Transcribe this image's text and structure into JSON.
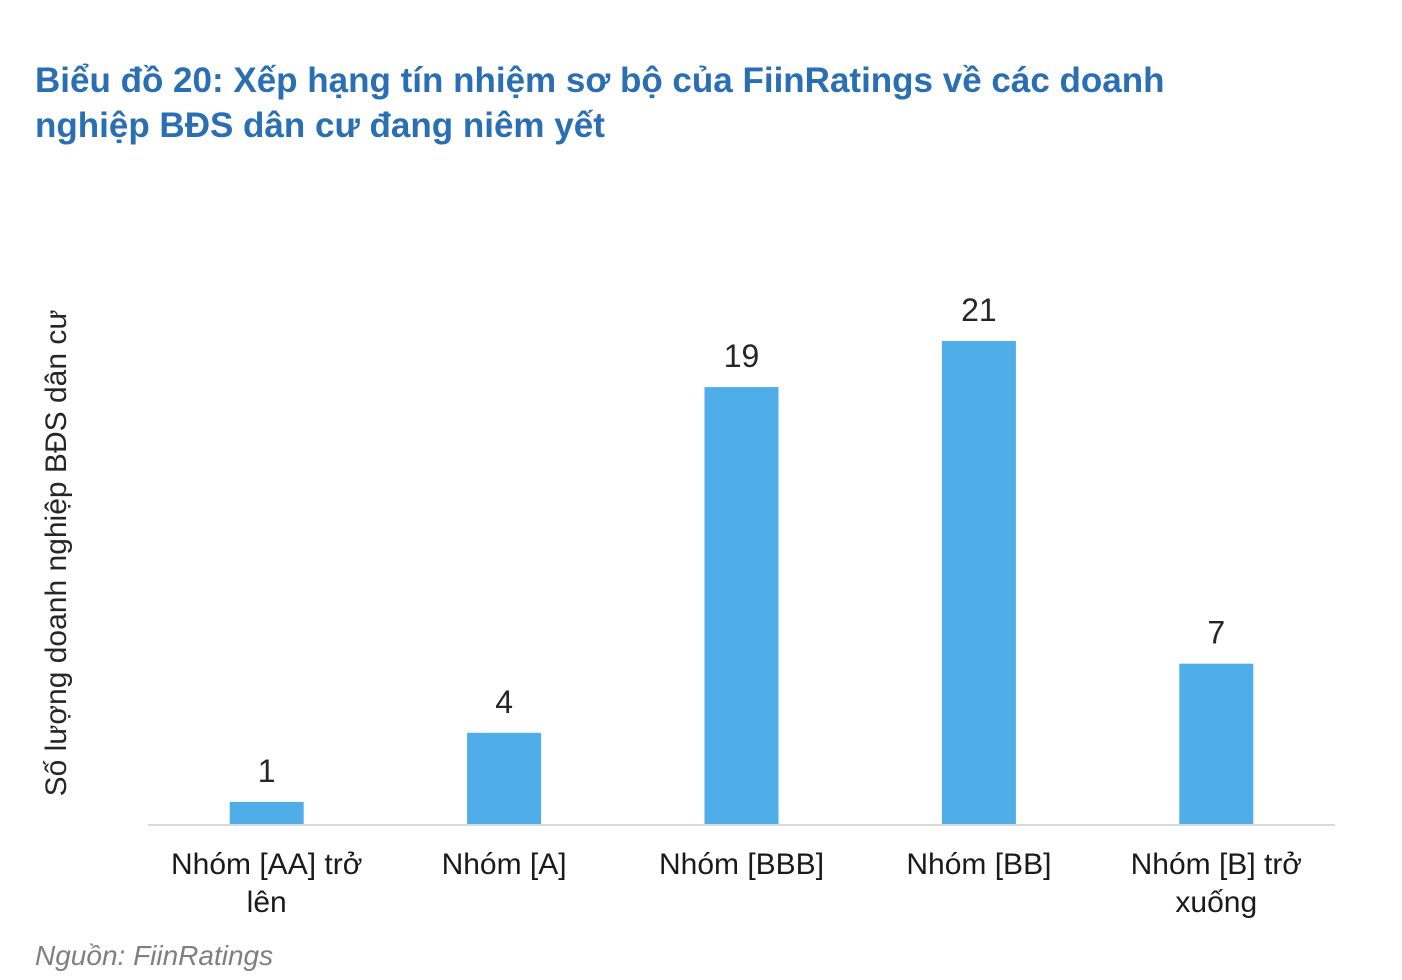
{
  "chart_data": {
    "type": "bar",
    "title": "Biểu đồ 20: Xếp hạng tín nhiệm sơ bộ của FiinRatings về các doanh nghiệp BĐS dân cư đang niêm yết",
    "y_label": "Số lượng doanh nghiệp BĐS dân cư",
    "categories": [
      "Nhóm [AA] trở lên",
      "Nhóm [A]",
      "Nhóm [BBB]",
      "Nhóm [BB]",
      "Nhóm [B] trở xuống"
    ],
    "values": [
      1,
      4,
      19,
      21,
      7
    ],
    "color": "#4faee8",
    "ylim": [
      0,
      21
    ],
    "source": "Nguồn: FiinRatings"
  }
}
